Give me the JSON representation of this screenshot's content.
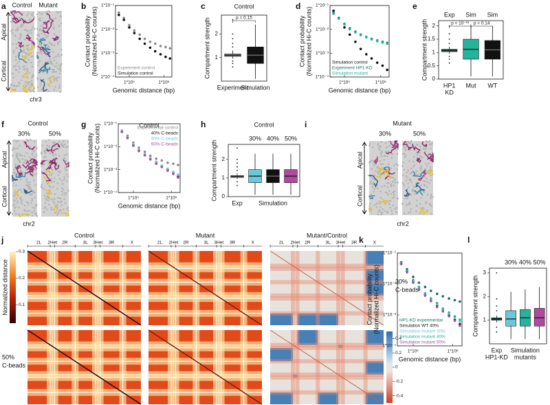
{
  "panels": {
    "a": {
      "letter": "a",
      "labels": [
        "Control",
        "Mutant"
      ],
      "axis_top": "Apical",
      "axis_bottom": "Cortical",
      "chromosome": "chr3"
    },
    "f": {
      "letter": "f",
      "title": "Control",
      "labels": [
        "30%",
        "50%"
      ],
      "axis_top": "Apical",
      "axis_bottom": "Cortical",
      "chromosome": "chr2"
    },
    "i": {
      "letter": "i",
      "title": "Mutant",
      "labels": [
        "30%",
        "50%"
      ],
      "axis_top": "Apical",
      "axis_bottom": "Cortical",
      "chromosome": "chr2"
    },
    "j": {
      "letter": "j",
      "columns": [
        "Control",
        "Mutant",
        "Mutant/Control"
      ],
      "chromosomes": [
        "2L",
        "2Het",
        "2R",
        "3L",
        "3Het",
        "3R",
        "X"
      ],
      "rows": [
        [
          "30%",
          "C-beads"
        ],
        [
          "50%",
          "C-beads"
        ]
      ],
      "colorbar_label": "Normalized distance",
      "colorbar_lim": [
        0.03,
        0.3
      ],
      "colorbar_ticks": [
        0.3,
        0.2,
        0.1
      ],
      "diff_colorbar_lim": [
        -0.5,
        0.5
      ],
      "diff_colorbar_ticks": [
        0.4,
        0.2,
        0,
        -0.2,
        -0.4
      ]
    }
  },
  "chart_data": [
    {
      "letter": "b",
      "type": "scatter",
      "log_x": true,
      "log_y": true,
      "legend": "lower left",
      "ylabel": [
        "Contact probability",
        "(Normalized Hi-C counts)"
      ],
      "xlabel": "Genomic distance (bp)",
      "x": [
        50000,
        70000,
        100000,
        140000,
        200000,
        280000,
        400000,
        560000,
        800000,
        1120000,
        1500000
      ],
      "xlim": [
        40000,
        1700000
      ],
      "ylim": [
        0.0001,
        0.1
      ],
      "xticks": [
        {
          "value": 100000,
          "label": "1*10⁵"
        },
        {
          "value": 1000000,
          "label": "1*10⁶"
        }
      ],
      "yticks": [
        {
          "value": 0.1,
          "label": "1*10⁻¹"
        },
        {
          "value": 0.01,
          "label": "1*10⁻²"
        },
        {
          "value": 0.001,
          "label": "1*10⁻³"
        },
        {
          "value": 0.0001,
          "label": "1*10⁻⁴"
        }
      ],
      "series": [
        {
          "name": "Experiment control",
          "color": "#8a8a8a",
          "values": [
            0.05,
            0.03,
            0.015,
            0.009,
            0.006,
            0.004,
            0.003,
            0.0025,
            0.002,
            0.0018,
            0.0016
          ]
        },
        {
          "name": "Simulation control",
          "color": "#111111",
          "values": [
            0.04,
            0.025,
            0.012,
            0.007,
            0.004,
            0.0025,
            0.0017,
            0.0012,
            0.0009,
            0.0007,
            0.0006
          ]
        }
      ]
    },
    {
      "letter": "c",
      "type": "box",
      "title": "Control",
      "ylabel": [
        "Compartment strength"
      ],
      "categories": [
        [
          "Experiment"
        ],
        [
          "Simulation"
        ]
      ],
      "ylim": [
        0,
        2.8
      ],
      "yticks": [
        1,
        2
      ],
      "annotations": [
        "p = 0.15"
      ],
      "boxes": [
        {
          "color": "#8a8a8a",
          "whislo": 0.95,
          "q1": 1.05,
          "med": 1.1,
          "q3": 1.15,
          "whishi": 1.3,
          "fliers": [
            0.6,
            0.75,
            0.85,
            1.45,
            1.6,
            1.8,
            2.0,
            2.6
          ]
        },
        {
          "color": "#111111",
          "whislo": 0.1,
          "q1": 0.75,
          "med": 1.1,
          "q3": 1.45,
          "whishi": 2.4,
          "fliers": []
        }
      ]
    },
    {
      "letter": "d",
      "type": "scatter",
      "log_x": true,
      "log_y": true,
      "legend": "lower left",
      "ylabel": [
        "Contact probability",
        "(Normalized Hi-C counts)"
      ],
      "xlabel": "Genomic distance (bp)",
      "x": [
        50000,
        70000,
        100000,
        140000,
        200000,
        280000,
        400000,
        560000,
        800000,
        1120000,
        1500000
      ],
      "xlim": [
        40000,
        1700000
      ],
      "ylim": [
        0.0001,
        0.1
      ],
      "xticks": [
        {
          "value": 100000,
          "label": "1*10⁵"
        },
        {
          "value": 1000000,
          "label": "1*10⁶"
        }
      ],
      "yticks": [
        {
          "value": 0.1,
          "label": "1*10⁻¹"
        },
        {
          "value": 0.01,
          "label": "1*10⁻²"
        },
        {
          "value": 0.001,
          "label": "1*10⁻³"
        },
        {
          "value": 0.0001,
          "label": "1*10⁻⁴"
        }
      ],
      "series": [
        {
          "name": "Simulation control",
          "color": "#111111",
          "values": [
            0.06,
            0.03,
            0.012,
            0.006,
            0.003,
            0.0015,
            0.0009,
            0.0006,
            0.0004,
            0.0003,
            0.0002
          ]
        },
        {
          "name": "Experiment HP1-KD",
          "color": "#17705f",
          "values": [
            0.05,
            0.03,
            0.017,
            0.011,
            0.008,
            0.006,
            0.0048,
            0.004,
            0.0034,
            0.003,
            0.0027
          ]
        },
        {
          "name": "Simulation mutant",
          "color": "#23b49b",
          "values": [
            0.045,
            0.028,
            0.016,
            0.01,
            0.0075,
            0.0057,
            0.0046,
            0.0038,
            0.0032,
            0.0028,
            0.0025
          ]
        }
      ]
    },
    {
      "letter": "e",
      "type": "box",
      "ylabel": [
        "Compartment strength"
      ],
      "categories": [
        [
          "HP1",
          "KD"
        ],
        [
          "Mut"
        ],
        [
          "WT"
        ]
      ],
      "top_labels": [
        "Exp",
        "Sim",
        "Sim"
      ],
      "ylim": [
        0,
        2.2
      ],
      "yticks": [
        0,
        0.5,
        1,
        1.5,
        2
      ],
      "annotations": [
        "p < 10⁻¹⁶",
        "p = 0.14"
      ],
      "boxes": [
        {
          "color": "#17705f",
          "whislo": 0.95,
          "q1": 1.03,
          "med": 1.08,
          "q3": 1.12,
          "whishi": 1.22,
          "fliers": [
            0.6,
            0.75,
            0.85,
            1.35,
            1.5,
            1.7,
            2.0
          ]
        },
        {
          "color": "#23b49b",
          "whislo": 0.1,
          "q1": 0.75,
          "med": 1.12,
          "q3": 1.5,
          "whishi": 2.05,
          "fliers": []
        },
        {
          "color": "#111111",
          "whislo": 0.1,
          "q1": 0.75,
          "med": 1.1,
          "q3": 1.45,
          "whishi": 2.0,
          "fliers": []
        }
      ]
    },
    {
      "letter": "g",
      "type": "scatter",
      "log_x": true,
      "log_y": true,
      "legend": "upper right",
      "title": "Control",
      "ylabel": [
        "Contact probability",
        "(Normalized Hi-C counts)"
      ],
      "xlabel": "Genomic distance (bp)",
      "x": [
        50000,
        70000,
        100000,
        140000,
        200000,
        280000,
        400000,
        560000,
        800000,
        1120000,
        1500000
      ],
      "xlim": [
        40000,
        1700000
      ],
      "ylim": [
        0.0001,
        0.1
      ],
      "xticks": [
        {
          "value": 100000,
          "label": "1*10⁵"
        },
        {
          "value": 1000000,
          "label": "1*10⁶"
        }
      ],
      "yticks": [
        {
          "value": 0.1,
          "label": "1*10⁻¹"
        },
        {
          "value": 0.01,
          "label": "1*10⁻²"
        },
        {
          "value": 0.001,
          "label": "1*10⁻³"
        },
        {
          "value": 0.0001,
          "label": "1*10⁻⁴"
        }
      ],
      "series": [
        {
          "name": "Experimental control",
          "color": "#8a8a8a",
          "values": [
            0.05,
            0.03,
            0.015,
            0.009,
            0.006,
            0.004,
            0.003,
            0.0025,
            0.002,
            0.0018,
            0.0016
          ]
        },
        {
          "name": "40% C-beads",
          "color": "#111111",
          "values": [
            0.045,
            0.025,
            0.012,
            0.007,
            0.0045,
            0.003,
            0.002,
            0.0014,
            0.001,
            0.0007,
            0.0005
          ]
        },
        {
          "name": "30% C-beads",
          "color": "#6cc8d8",
          "values": [
            0.046,
            0.026,
            0.013,
            0.0075,
            0.0048,
            0.0032,
            0.0022,
            0.0015,
            0.0011,
            0.0008,
            0.0006
          ]
        },
        {
          "name": "50% C-beads",
          "color": "#b04a9e",
          "values": [
            0.044,
            0.024,
            0.011,
            0.0065,
            0.0042,
            0.0028,
            0.0018,
            0.0013,
            0.0009,
            0.00065,
            0.00045
          ]
        }
      ]
    },
    {
      "letter": "h",
      "type": "box",
      "title": "Control",
      "ylabel": [
        "Compartment strength"
      ],
      "categories": [
        [
          "Exp"
        ],
        null,
        null,
        null
      ],
      "top_labels": [
        null,
        "30%",
        "40%",
        "50%"
      ],
      "group_label": [
        "Simulation"
      ],
      "ylim": [
        0,
        2.8
      ],
      "yticks": [
        0,
        1,
        2
      ],
      "boxes": [
        {
          "color": "#8a8a8a",
          "whislo": 0.95,
          "q1": 1.03,
          "med": 1.08,
          "q3": 1.13,
          "whishi": 1.25,
          "fliers": [
            0.6,
            0.8,
            1.4,
            1.6,
            1.8,
            2.0,
            2.6
          ]
        },
        {
          "color": "#6cc8d8",
          "whislo": 0.1,
          "q1": 0.75,
          "med": 1.1,
          "q3": 1.45,
          "whishi": 2.3,
          "fliers": []
        },
        {
          "color": "#111111",
          "whislo": 0.1,
          "q1": 0.75,
          "med": 1.1,
          "q3": 1.45,
          "whishi": 2.3,
          "fliers": []
        },
        {
          "color": "#b04a9e",
          "whislo": 0.1,
          "q1": 0.75,
          "med": 1.1,
          "q3": 1.45,
          "whishi": 2.3,
          "fliers": []
        }
      ]
    },
    {
      "letter": "k",
      "type": "scatter",
      "log_x": true,
      "log_y": true,
      "legend": "lower left",
      "ylabel": [
        "Contact probability",
        "(Normalized Hi-C counts)"
      ],
      "xlabel": "Genomic distance (bp)",
      "x": [
        50000,
        70000,
        100000,
        140000,
        200000,
        280000,
        400000,
        560000,
        800000,
        1120000,
        1500000
      ],
      "xlim": [
        40000,
        1700000
      ],
      "ylim": [
        0.0001,
        0.1
      ],
      "xticks": [
        {
          "value": 100000,
          "label": "1*10⁵"
        },
        {
          "value": 1000000,
          "label": "1*10⁶"
        }
      ],
      "yticks": [
        {
          "value": 0.1,
          "label": "1*10⁻¹"
        },
        {
          "value": 0.01,
          "label": "1*10⁻²"
        },
        {
          "value": 0.001,
          "label": "1*10⁻³"
        },
        {
          "value": 0.0001,
          "label": "1*10⁻⁴"
        }
      ],
      "series": [
        {
          "name": "HP1-KD experimental",
          "color": "#17705f",
          "values": [
            0.05,
            0.03,
            0.017,
            0.011,
            0.008,
            0.006,
            0.0048,
            0.004,
            0.0034,
            0.003,
            0.0027
          ]
        },
        {
          "name": "Simulation WT 40%",
          "color": "#111111",
          "values": [
            0.045,
            0.025,
            0.012,
            0.007,
            0.0045,
            0.003,
            0.002,
            0.0014,
            0.001,
            0.0007,
            0.0005
          ]
        },
        {
          "name": "Simulation mutant 30%",
          "color": "#6cc8d8",
          "values": [
            0.046,
            0.026,
            0.013,
            0.0075,
            0.0048,
            0.0032,
            0.0022,
            0.0015,
            0.0011,
            0.0008,
            0.0006
          ]
        },
        {
          "name": "Simulation mutant 40%",
          "color": "#23b49b",
          "values": [
            0.047,
            0.027,
            0.0135,
            0.008,
            0.005,
            0.0034,
            0.0024,
            0.0016,
            0.0012,
            0.0009,
            0.0007
          ]
        },
        {
          "name": "Simulation mutant 50%",
          "color": "#b04a9e",
          "values": [
            0.044,
            0.024,
            0.011,
            0.0065,
            0.0042,
            0.0028,
            0.0018,
            0.0013,
            0.0009,
            0.00065,
            0.00045
          ]
        }
      ]
    },
    {
      "letter": "l",
      "type": "box",
      "ylabel": [
        "Compartment strength"
      ],
      "categories": [
        [
          "Exp",
          "HP1-KD"
        ],
        null,
        null,
        null
      ],
      "top_labels": [
        null,
        "30%",
        "40%",
        "50%"
      ],
      "group_label": [
        "Simulation",
        "mutants"
      ],
      "ylim": [
        0,
        3.2
      ],
      "yticks": [
        1,
        2,
        3
      ],
      "boxes": [
        {
          "color": "#17705f",
          "whislo": 0.9,
          "q1": 1.0,
          "med": 1.05,
          "q3": 1.1,
          "whishi": 1.2,
          "fliers": [
            0.5,
            0.7,
            1.4,
            1.6,
            1.9,
            3.0
          ]
        },
        {
          "color": "#6cc8d8",
          "whislo": 0.2,
          "q1": 0.75,
          "med": 1.05,
          "q3": 1.4,
          "whishi": 2.2,
          "fliers": []
        },
        {
          "color": "#23b49b",
          "whislo": 0.2,
          "q1": 0.75,
          "med": 1.1,
          "q3": 1.45,
          "whishi": 2.3,
          "fliers": []
        },
        {
          "color": "#b04a9e",
          "whislo": 0.2,
          "q1": 0.75,
          "med": 1.1,
          "q3": 1.5,
          "whishi": 2.4,
          "fliers": []
        }
      ]
    }
  ]
}
